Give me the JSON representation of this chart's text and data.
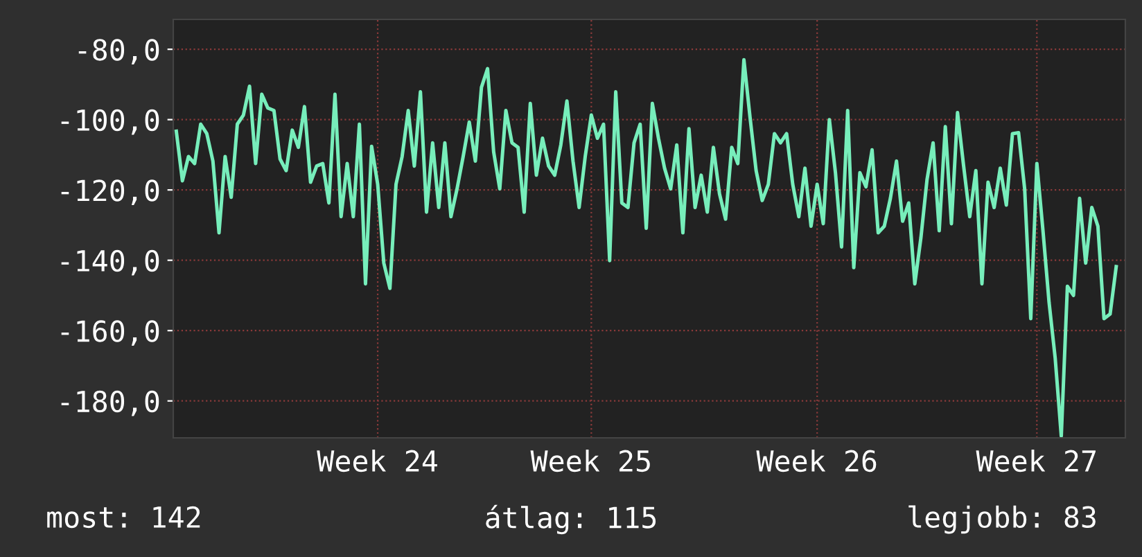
{
  "chart_data": {
    "type": "line",
    "categories": [
      null,
      null,
      null,
      null,
      null,
      null,
      null,
      null,
      null,
      null,
      null,
      null,
      null,
      null,
      null,
      null,
      null,
      null,
      null,
      null,
      null,
      null,
      null,
      null,
      null,
      null,
      null,
      null,
      null,
      null,
      null,
      null,
      null,
      "Week 24",
      null,
      null,
      null,
      null,
      null,
      null,
      null,
      null,
      null,
      null,
      null,
      null,
      null,
      null,
      null,
      null,
      null,
      null,
      null,
      null,
      null,
      null,
      null,
      null,
      null,
      null,
      null,
      null,
      null,
      null,
      null,
      null,
      null,
      null,
      "Week 25",
      null,
      null,
      null,
      null,
      null,
      null,
      null,
      null,
      null,
      null,
      null,
      null,
      null,
      null,
      null,
      null,
      null,
      null,
      null,
      null,
      null,
      null,
      null,
      null,
      null,
      null,
      null,
      null,
      null,
      null,
      null,
      null,
      null,
      null,
      null,
      null,
      "Week 26",
      null,
      null,
      null,
      null,
      null,
      null,
      null,
      null,
      null,
      null,
      null,
      null,
      null,
      null,
      null,
      null,
      null,
      null,
      null,
      null,
      null,
      null,
      null,
      null,
      null,
      null,
      null,
      null,
      null,
      null,
      null,
      null,
      null,
      null,
      null,
      "Week 27",
      null,
      null,
      null,
      null,
      null,
      null,
      null,
      null,
      null,
      null,
      null,
      null,
      null
    ],
    "series": [
      {
        "color": "#77eebb",
        "values": [
          -103.3,
          -117.4,
          -110.5,
          -112.5,
          -101.3,
          -104,
          -111.8,
          -132.2,
          -110.5,
          -122.1,
          -101.3,
          -98.7,
          -90.5,
          -112.5,
          -92.8,
          -96.7,
          -97.4,
          -111.2,
          -114.5,
          -103,
          -107.9,
          -96.3,
          -117.8,
          -113.2,
          -112.5,
          -123.7,
          -92.8,
          -127.6,
          -112.5,
          -127.6,
          -101.3,
          -146.7,
          -107.6,
          -118.4,
          -140.8,
          -148,
          -118.4,
          -110.5,
          -97.4,
          -113.2,
          -92.1,
          -126.3,
          -106.6,
          -125,
          -106.6,
          -127.6,
          -119.7,
          -110.5,
          -100.7,
          -111.8,
          -90.8,
          -85.5,
          -109.2,
          -119.7,
          -97.4,
          -106.6,
          -107.9,
          -126.3,
          -95.4,
          -115.8,
          -105.3,
          -113.2,
          -115.8,
          -107.2,
          -94.7,
          -111.8,
          -125,
          -110.5,
          -98.7,
          -105.3,
          -101.3,
          -140.1,
          -92.1,
          -123.7,
          -125,
          -106.6,
          -101.3,
          -130.9,
          -95.4,
          -105.3,
          -113.8,
          -119.7,
          -107.2,
          -132.2,
          -102.6,
          -125,
          -115.8,
          -126.3,
          -107.9,
          -121.1,
          -128.3,
          -107.9,
          -112.5,
          -83,
          -99.3,
          -114.5,
          -123,
          -118.4,
          -104,
          -106.6,
          -104,
          -118.4,
          -127.6,
          -113.8,
          -130.3,
          -118.4,
          -129.6,
          -100,
          -115.1,
          -136.2,
          -97.4,
          -142.1,
          -115.1,
          -119.1,
          -108.6,
          -132.2,
          -130.3,
          -122.4,
          -111.8,
          -128.9,
          -123.7,
          -146.7,
          -133.6,
          -117.1,
          -106.6,
          -131.6,
          -102,
          -129.6,
          -98,
          -113.2,
          -127.6,
          -114.5,
          -146.7,
          -117.8,
          -125,
          -113.8,
          -124.3,
          -104,
          -103.7,
          -119.7,
          -156.6,
          -112.5,
          -131.6,
          -152,
          -167.8,
          -190,
          -147.4,
          -150,
          -122.4,
          -140.8,
          -125,
          -130.3,
          -156.6,
          -155.3,
          -141.8
        ]
      }
    ],
    "ylim": [
      -190.5,
      -71.5
    ],
    "yticks": [
      {
        "value": -80,
        "label": "-80,0"
      },
      {
        "value": -100,
        "label": "-100,0"
      },
      {
        "value": -120,
        "label": "-120,0"
      },
      {
        "value": -140,
        "label": "-140,0"
      },
      {
        "value": -160,
        "label": "-160,0"
      },
      {
        "value": -180,
        "label": "-180,0"
      }
    ],
    "grid": true,
    "line_style": "solid",
    "annotations": [
      "most: 142",
      "átlag: 115",
      "legjobb: 83"
    ]
  }
}
